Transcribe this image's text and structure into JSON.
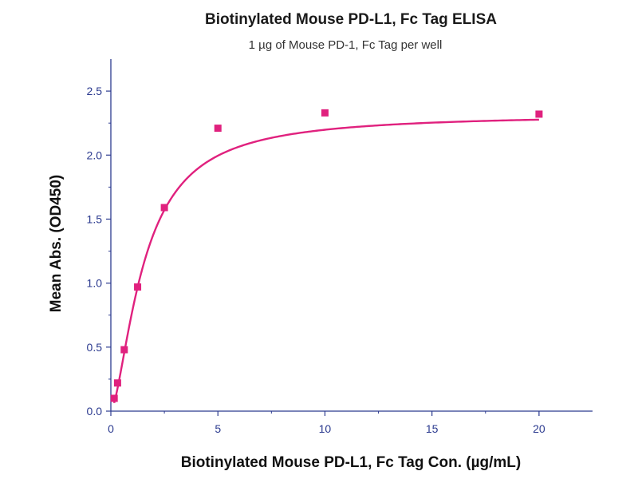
{
  "chart_data": {
    "type": "scatter",
    "title": "Biotinylated Mouse PD-L1, Fc Tag ELISA",
    "subtitle": "1 µg of Mouse PD-1, Fc Tag per well",
    "xlabel": "Biotinylated Mouse PD-L1, Fc Tag Con. (µg/mL)",
    "ylabel": "Mean Abs. (OD450)",
    "xlim": [
      0,
      22.5
    ],
    "ylim": [
      0,
      2.75
    ],
    "x_ticks": [
      0,
      5,
      10,
      15,
      20
    ],
    "y_ticks": [
      0.0,
      0.5,
      1.0,
      1.5,
      2.0,
      2.5
    ],
    "x_tick_labels": [
      "0",
      "5",
      "10",
      "15",
      "20"
    ],
    "y_tick_labels": [
      "0.0",
      "0.5",
      "1.0",
      "1.5",
      "2.0",
      "2.5"
    ],
    "grid": false,
    "series": [
      {
        "points": [
          {
            "x": 0.156,
            "y": 0.1
          },
          {
            "x": 0.313,
            "y": 0.22
          },
          {
            "x": 0.625,
            "y": 0.48
          },
          {
            "x": 1.25,
            "y": 0.97
          },
          {
            "x": 2.5,
            "y": 1.59
          },
          {
            "x": 5,
            "y": 2.21
          },
          {
            "x": 10,
            "y": 2.33
          },
          {
            "x": 20,
            "y": 2.32
          }
        ],
        "fit": "sigmoidal"
      }
    ],
    "colors": {
      "series": "#e0217e",
      "axis": "#2b3a8f"
    }
  }
}
